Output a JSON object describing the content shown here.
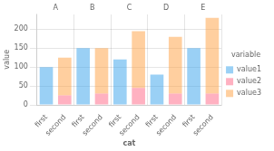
{
  "chart_data": {
    "type": "bar",
    "stacked": true,
    "xlabel": "cat",
    "ylabel": "value",
    "facets": [
      "A",
      "B",
      "C",
      "D",
      "E"
    ],
    "categories": [
      "first",
      "second",
      "first",
      "second",
      "first",
      "second",
      "first",
      "second",
      "first",
      "second"
    ],
    "series": [
      {
        "name": "value1",
        "values": [
          100,
          0,
          150,
          0,
          120,
          0,
          80,
          0,
          150,
          0
        ]
      },
      {
        "name": "value2",
        "values": [
          0,
          25,
          0,
          30,
          0,
          45,
          0,
          30,
          0,
          30
        ]
      },
      {
        "name": "value3",
        "values": [
          0,
          100,
          0,
          120,
          0,
          150,
          0,
          150,
          0,
          200
        ]
      }
    ],
    "ylim": [
      0,
      240
    ],
    "yticks": [
      0,
      50,
      100,
      150,
      200
    ],
    "grid": true,
    "legend": "right",
    "legend_title": "variable"
  }
}
